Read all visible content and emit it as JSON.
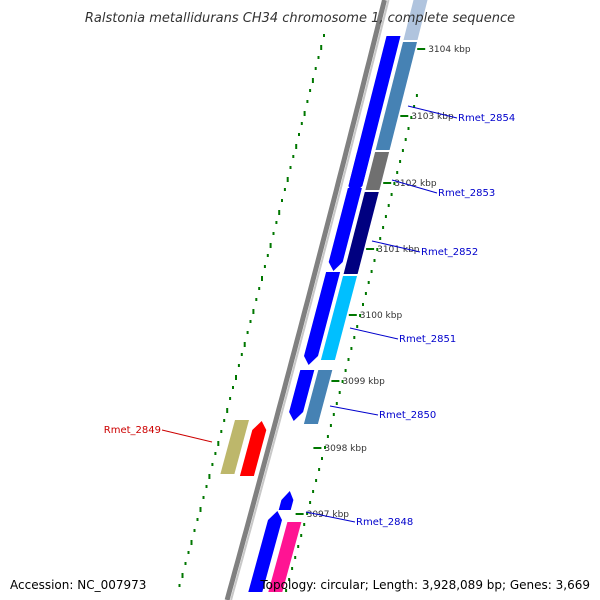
{
  "title": "Ralstonia metallidurans CH34 chromosome 1, complete sequence",
  "footer": {
    "accession": "Accession: NC_007973",
    "summary": "Topology: circular; Length: 3,928,089 bp; Genes: 3,669"
  },
  "ticks": [
    "3104 kbp",
    "3103 kbp",
    "3102 kbp",
    "3101 kbp",
    "3100 kbp",
    "3099 kbp",
    "3098 kbp",
    "3097 kbp"
  ],
  "gene_labels": [
    {
      "name": "Rmet_2854",
      "color": "#0000cc"
    },
    {
      "name": "Rmet_2853",
      "color": "#0000cc"
    },
    {
      "name": "Rmet_2852",
      "color": "#0000cc"
    },
    {
      "name": "Rmet_2851",
      "color": "#0000cc"
    },
    {
      "name": "Rmet_2850",
      "color": "#0000cc"
    },
    {
      "name": "Rmet_2849",
      "color": "#cc0000"
    },
    {
      "name": "Rmet_2848",
      "color": "#0000cc"
    }
  ],
  "colors": {
    "cds": "#0000ff",
    "cog_light": "#4682b4",
    "cog_gray": "#707070",
    "cog_navy": "#000080",
    "cog_cyan": "#00bfff",
    "cog_pink": "#ff1493",
    "cog_khaki": "#bdb76b",
    "highlight": "#ff0000",
    "backbone": "#808080",
    "gc": "#007700"
  }
}
